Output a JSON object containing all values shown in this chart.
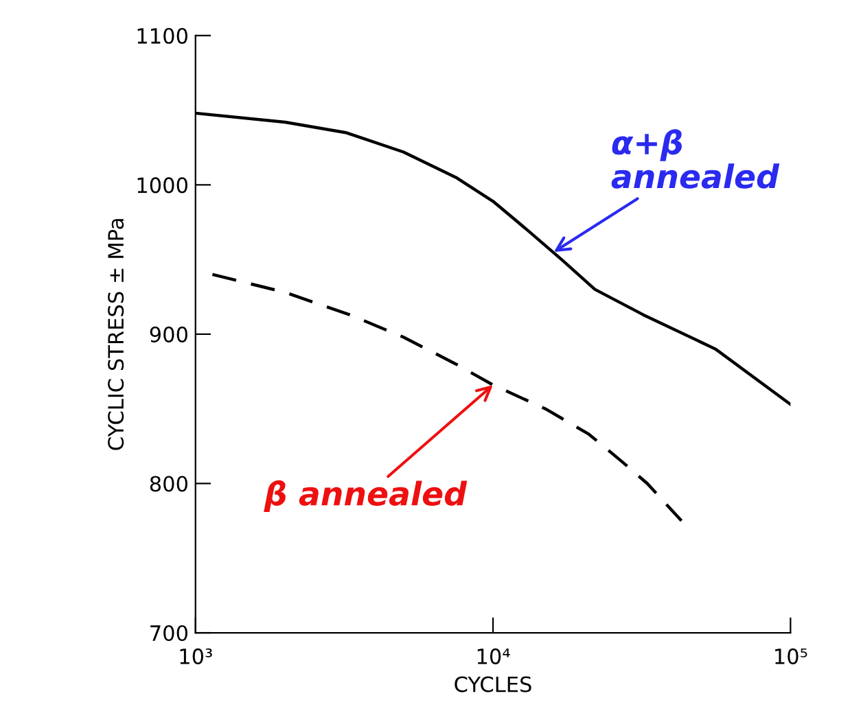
{
  "chart_data": {
    "type": "line",
    "xlabel": "CYCLES",
    "ylabel": "CYCLIC STRESS ± MPa",
    "log": "x",
    "xlim": [
      1000,
      100000
    ],
    "xticks": [
      {
        "value": 1000,
        "label": "10³"
      },
      {
        "value": 10000,
        "label": "10⁴"
      },
      {
        "value": 100000,
        "label": "10⁵"
      }
    ],
    "ylim": [
      700,
      1100
    ],
    "yticks": [
      700,
      800,
      900,
      1000,
      1100
    ],
    "grid": false,
    "legend": false,
    "marker": "none",
    "series": [
      {
        "color": "#000000",
        "line_style": "solid",
        "x": [
          1000,
          2000,
          3200,
          5000,
          7500,
          10000,
          13000,
          17000,
          22000,
          32000,
          56000,
          100000
        ],
        "values": [
          1048,
          1042,
          1035,
          1022,
          1005,
          989,
          970,
          950,
          930,
          913,
          890,
          853
        ]
      },
      {
        "color": "#000000",
        "line_style": "dashed",
        "x": [
          1140,
          2000,
          3300,
          5000,
          7500,
          10000,
          15000,
          21000,
          27000,
          33000,
          43000
        ],
        "values": [
          940,
          928,
          913,
          898,
          880,
          866,
          850,
          833,
          815,
          800,
          775
        ]
      }
    ],
    "annotations": [
      {
        "text": "α+β\nannealed",
        "x": 16000,
        "y": 955
      },
      {
        "text": "β annealed",
        "x": 10000,
        "y": 866
      }
    ]
  }
}
